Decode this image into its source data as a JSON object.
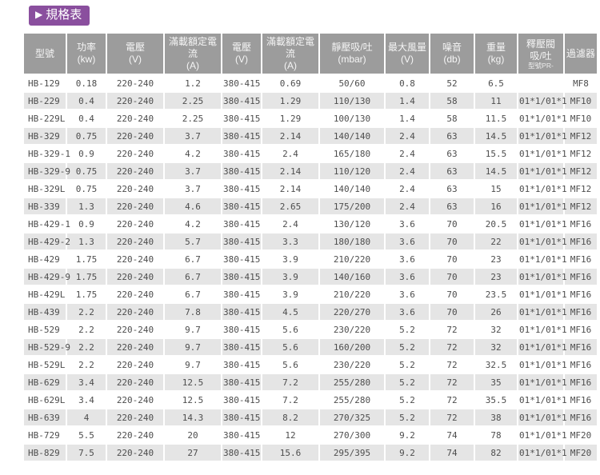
{
  "theme": {
    "accent": "#8a4f9e",
    "page_bg": "#ffffff",
    "header_bg": "#9c9c9c",
    "header_fg": "#f5f5f5",
    "stripe_bg": "#e5e5e5",
    "cell_fg": "#4d4d4d"
  },
  "header": {
    "title": "規格表",
    "play_icon": "▶"
  },
  "table": {
    "columns": [
      {
        "name": "型號",
        "unit": "",
        "note": ""
      },
      {
        "name": "功率",
        "unit": "(kw)",
        "note": ""
      },
      {
        "name": "電壓",
        "unit": "(V)",
        "note": ""
      },
      {
        "name": "滿載額定電流",
        "unit": "(A)",
        "note": ""
      },
      {
        "name": "電壓",
        "unit": "(V)",
        "note": ""
      },
      {
        "name": "滿載額定電流",
        "unit": "(A)",
        "note": ""
      },
      {
        "name": "靜壓吸/吐",
        "unit": "(mbar)",
        "note": ""
      },
      {
        "name": "最大風量",
        "unit": "(V)",
        "note": ""
      },
      {
        "name": "噪音",
        "unit": "(db)",
        "note": ""
      },
      {
        "name": "重量",
        "unit": "(kg)",
        "note": ""
      },
      {
        "name": "釋壓閥",
        "unit": "吸/吐",
        "note": "型號PR-"
      },
      {
        "name": "過濾器",
        "unit": "",
        "note": ""
      }
    ],
    "rows": [
      [
        "HB-129",
        "0.18",
        "220-240",
        "1.2",
        "380-415",
        "0.69",
        "50/60",
        "0.8",
        "52",
        "6.5",
        "",
        "MF8"
      ],
      [
        "HB-229",
        "0.4",
        "220-240",
        "2.25",
        "380-415",
        "1.29",
        "110/130",
        "1.4",
        "58",
        "11",
        "01*1/01*1",
        "MF10"
      ],
      [
        "HB-229L",
        "0.4",
        "220-240",
        "2.25",
        "380-415",
        "1.29",
        "100/130",
        "1.4",
        "58",
        "11.5",
        "01*1/01*1",
        "MF10"
      ],
      [
        "HB-329",
        "0.75",
        "220-240",
        "3.7",
        "380-415",
        "2.14",
        "140/140",
        "2.4",
        "63",
        "14.5",
        "01*1/01*1",
        "MF12"
      ],
      [
        "HB-329-1",
        "0.9",
        "220-240",
        "4.2",
        "380-415",
        "2.4",
        "165/180",
        "2.4",
        "63",
        "15.5",
        "01*1/01*1",
        "MF12"
      ],
      [
        "HB-329-9",
        "0.75",
        "220-240",
        "3.7",
        "380-415",
        "2.14",
        "110/120",
        "2.4",
        "63",
        "14.5",
        "01*1/01*1",
        "MF12"
      ],
      [
        "HB-329L",
        "0.75",
        "220-240",
        "3.7",
        "380-415",
        "2.14",
        "140/140",
        "2.4",
        "63",
        "15",
        "01*1/01*1",
        "MF12"
      ],
      [
        "HB-339",
        "1.3",
        "220-240",
        "4.6",
        "380-415",
        "2.65",
        "175/200",
        "2.4",
        "63",
        "16",
        "01*1/01*1",
        "MF12"
      ],
      [
        "HB-429-1",
        "0.9",
        "220-240",
        "4.2",
        "380-415",
        "2.4",
        "130/120",
        "3.6",
        "70",
        "20.5",
        "01*1/01*1",
        "MF16"
      ],
      [
        "HB-429-2",
        "1.3",
        "220-240",
        "5.7",
        "380-415",
        "3.3",
        "180/180",
        "3.6",
        "70",
        "22",
        "01*1/01*1",
        "MF16"
      ],
      [
        "HB-429",
        "1.75",
        "220-240",
        "6.7",
        "380-415",
        "3.9",
        "210/220",
        "3.6",
        "70",
        "23",
        "01*1/01*1",
        "MF16"
      ],
      [
        "HB-429-9",
        "1.75",
        "220-240",
        "6.7",
        "380-415",
        "3.9",
        "140/160",
        "3.6",
        "70",
        "23",
        "01*1/01*1",
        "MF16"
      ],
      [
        "HB-429L",
        "1.75",
        "220-240",
        "6.7",
        "380-415",
        "3.9",
        "210/220",
        "3.6",
        "70",
        "23.5",
        "01*1/01*1",
        "MF16"
      ],
      [
        "HB-439",
        "2.2",
        "220-240",
        "7.8",
        "380-415",
        "4.5",
        "220/270",
        "3.6",
        "70",
        "26",
        "01*1/01*1",
        "MF16"
      ],
      [
        "HB-529",
        "2.2",
        "220-240",
        "9.7",
        "380-415",
        "5.6",
        "230/220",
        "5.2",
        "72",
        "32",
        "01*1/01*1",
        "MF16"
      ],
      [
        "HB-529-9",
        "2.2",
        "220-240",
        "9.7",
        "380-415",
        "5.6",
        "160/200",
        "5.2",
        "72",
        "32",
        "01*1/01*1",
        "MF16"
      ],
      [
        "HB-529L",
        "2.2",
        "220-240",
        "9.7",
        "380-415",
        "5.6",
        "230/220",
        "5.2",
        "72",
        "32.5",
        "01*1/01*1",
        "MF16"
      ],
      [
        "HB-629",
        "3.4",
        "220-240",
        "12.5",
        "380-415",
        "7.2",
        "255/280",
        "5.2",
        "72",
        "35",
        "01*1/01*1",
        "MF16"
      ],
      [
        "HB-629L",
        "3.4",
        "220-240",
        "12.5",
        "380-415",
        "7.2",
        "255/280",
        "5.2",
        "72",
        "35.5",
        "01*1/01*1",
        "MF16"
      ],
      [
        "HB-639",
        "4",
        "220-240",
        "14.3",
        "380-415",
        "8.2",
        "270/325",
        "5.2",
        "72",
        "38",
        "01*1/01*1",
        "MF16"
      ],
      [
        "HB-729",
        "5.5",
        "220-240",
        "20",
        "380-415",
        "12",
        "270/300",
        "9.2",
        "74",
        "78",
        "01*1/01*1",
        "MF20"
      ],
      [
        "HB-829",
        "7.5",
        "220-240",
        "27",
        "380-415",
        "15.6",
        "295/395",
        "9.2",
        "74",
        "82",
        "01*1/01*1",
        "MF20"
      ]
    ]
  }
}
